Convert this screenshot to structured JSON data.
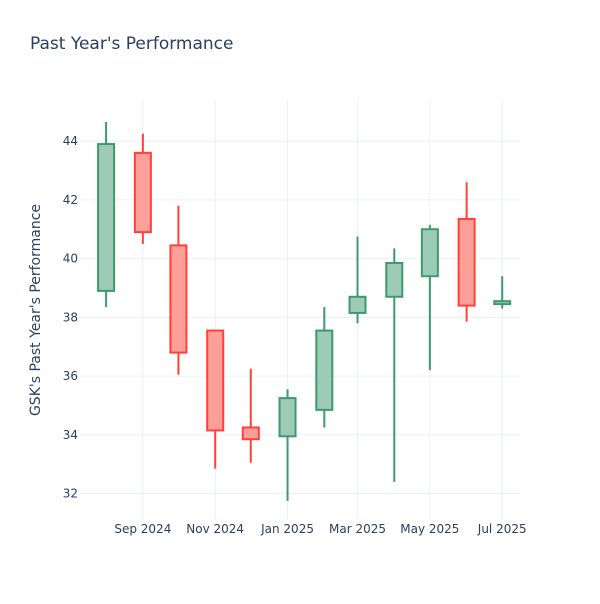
{
  "chart_data": {
    "type": "candlestick",
    "title": "Past Year's Performance",
    "xlabel": "",
    "ylabel": "GSK's Past Year's Performance",
    "ylim": [
      31.1,
      45.4
    ],
    "y_ticks": [
      32,
      34,
      36,
      38,
      40,
      42,
      44
    ],
    "x_ticks": [
      {
        "label": "Sep 2024",
        "date": "2024-09-01"
      },
      {
        "label": "Nov 2024",
        "date": "2024-11-01"
      },
      {
        "label": "Jan 2025",
        "date": "2025-01-01"
      },
      {
        "label": "Mar 2025",
        "date": "2025-03-01"
      },
      {
        "label": "May 2025",
        "date": "2025-05-01"
      },
      {
        "label": "Jul 2025",
        "date": "2025-07-01"
      }
    ],
    "x_range": [
      "2024-07-10",
      "2025-07-16"
    ],
    "grid": true,
    "legend": false,
    "increasing_color": "#3d9970",
    "increasing_fill": "#9ecbb5",
    "decreasing_color": "#ff4136",
    "decreasing_fill": "#ff9f9a",
    "candles": [
      {
        "date": "2024-08-01",
        "open": 38.9,
        "high": 44.65,
        "low": 38.35,
        "close": 43.9
      },
      {
        "date": "2024-09-01",
        "open": 43.6,
        "high": 44.25,
        "low": 40.5,
        "close": 40.9
      },
      {
        "date": "2024-10-01",
        "open": 40.45,
        "high": 41.8,
        "low": 36.05,
        "close": 36.8
      },
      {
        "date": "2024-11-01",
        "open": 37.55,
        "high": 37.55,
        "low": 32.85,
        "close": 34.15
      },
      {
        "date": "2024-12-01",
        "open": 34.25,
        "high": 36.25,
        "low": 33.05,
        "close": 33.85
      },
      {
        "date": "2025-01-01",
        "open": 33.95,
        "high": 35.55,
        "low": 31.75,
        "close": 35.25
      },
      {
        "date": "2025-02-01",
        "open": 34.85,
        "high": 38.35,
        "low": 34.25,
        "close": 37.55
      },
      {
        "date": "2025-03-01",
        "open": 38.15,
        "high": 40.75,
        "low": 37.8,
        "close": 38.7
      },
      {
        "date": "2025-04-01",
        "open": 38.7,
        "high": 40.35,
        "low": 32.4,
        "close": 39.85
      },
      {
        "date": "2025-05-01",
        "open": 39.4,
        "high": 41.15,
        "low": 36.2,
        "close": 41.0
      },
      {
        "date": "2025-06-01",
        "open": 41.35,
        "high": 42.6,
        "low": 37.85,
        "close": 38.4
      },
      {
        "date": "2025-07-01",
        "open": 38.45,
        "high": 39.4,
        "low": 38.3,
        "close": 38.55
      }
    ]
  }
}
